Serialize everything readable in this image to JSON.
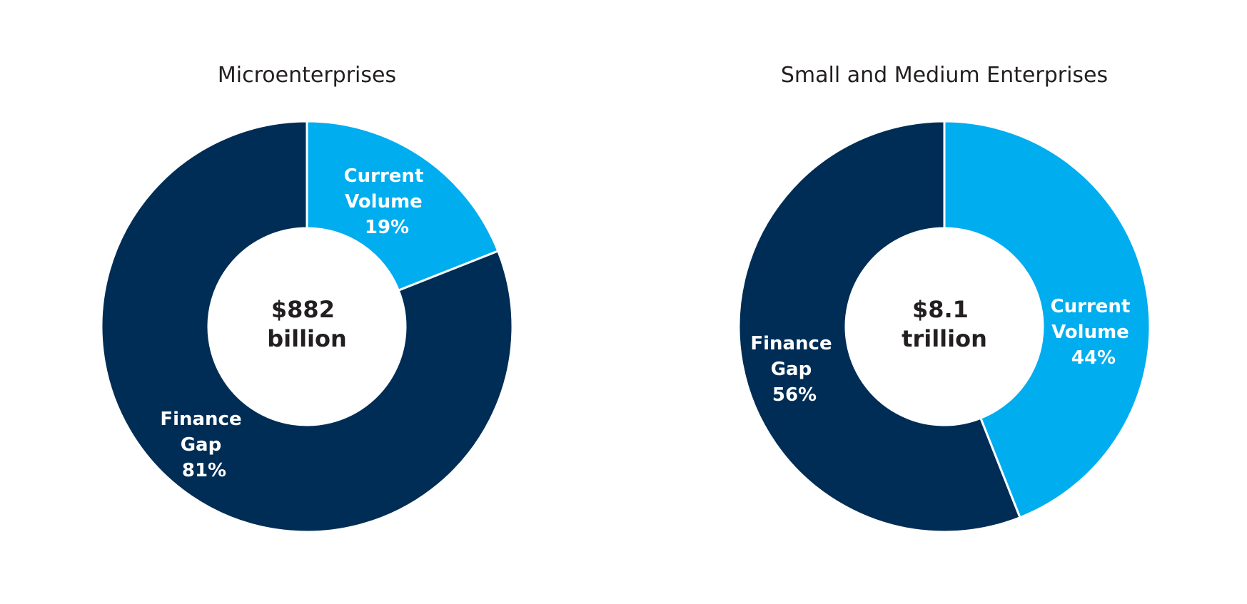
{
  "chart_data": [
    {
      "type": "pie",
      "variant": "donut",
      "title": "Microenterprises",
      "center_text": [
        "$882",
        "billion"
      ],
      "slices": [
        {
          "name": "Current Volume",
          "label_lines": [
            "Current",
            "Volume",
            "19%"
          ],
          "value": 19,
          "color": "#00adef"
        },
        {
          "name": "Finance Gap",
          "label_lines": [
            "Finance",
            "Gap",
            "81%"
          ],
          "value": 81,
          "color": "#002d55"
        }
      ]
    },
    {
      "type": "pie",
      "variant": "donut",
      "title": "Small and Medium Enterprises",
      "center_text": [
        "$8.1",
        "trillion"
      ],
      "slices": [
        {
          "name": "Current Volume",
          "label_lines": [
            "Current",
            "Volume",
            "44%"
          ],
          "value": 44,
          "color": "#00adef"
        },
        {
          "name": "Finance Gap",
          "label_lines": [
            "Finance",
            "Gap",
            "56%"
          ],
          "value": 56,
          "color": "#002d55"
        }
      ]
    }
  ]
}
